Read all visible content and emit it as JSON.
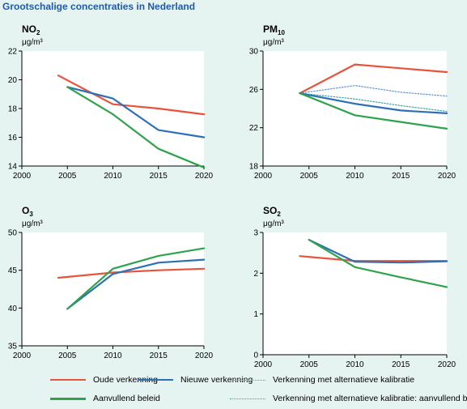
{
  "page": {
    "title": "Grootschalige concentraties in Nederland"
  },
  "colors": {
    "oude": "#e8533c",
    "nieuwe": "#2f6fb6",
    "alt": "#5b92d2",
    "aanvullend": "#2ea34b",
    "alt_aanvullend": "#30a7a0"
  },
  "chart_data": [
    {
      "id": "no2",
      "type": "line",
      "title_main": "NO",
      "title_sub": "2",
      "unit": "μg/m³",
      "xlim": [
        2000,
        2020
      ],
      "xticks": [
        "2000",
        "2005",
        "2010",
        "2015",
        "2020"
      ],
      "ylim": [
        14,
        22
      ],
      "yticks": [
        "14",
        "16",
        "18",
        "20",
        "22"
      ],
      "series": [
        {
          "name": "Oude verkenning",
          "color": "oude",
          "dash": "",
          "x": [
            2004,
            2010,
            2015,
            2020
          ],
          "y": [
            20.3,
            18.3,
            18.0,
            17.6
          ]
        },
        {
          "name": "Nieuwe verkenning",
          "color": "nieuwe",
          "dash": "",
          "x": [
            2005,
            2010,
            2015,
            2020
          ],
          "y": [
            19.5,
            18.7,
            16.5,
            16.0
          ]
        },
        {
          "name": "Aanvullend beleid",
          "color": "aanvullend",
          "dash": "",
          "x": [
            2005,
            2010,
            2015,
            2020
          ],
          "y": [
            19.5,
            17.6,
            15.2,
            13.9
          ]
        }
      ]
    },
    {
      "id": "pm10",
      "type": "line",
      "title_main": "PM",
      "title_sub": "10",
      "unit": "μg/m³",
      "xlim": [
        2000,
        2020
      ],
      "xticks": [
        "2000",
        "2005",
        "2010",
        "2015",
        "2020"
      ],
      "ylim": [
        18,
        30
      ],
      "yticks": [
        "18",
        "22",
        "26",
        "30"
      ],
      "series": [
        {
          "name": "Oude verkenning",
          "color": "oude",
          "dash": "",
          "x": [
            2004,
            2010,
            2015,
            2020
          ],
          "y": [
            25.6,
            28.6,
            28.2,
            27.8
          ]
        },
        {
          "name": "Verkenning met alternatieve kalibratie",
          "color": "alt",
          "dash": "1.5,2",
          "x": [
            2004,
            2010,
            2015,
            2020
          ],
          "y": [
            25.6,
            26.4,
            25.7,
            25.3
          ]
        },
        {
          "name": "Verkenning met alternatieve kalibratie: aanvullend beleid",
          "color": "alt_aanvullend",
          "dash": "1.5,2",
          "x": [
            2004,
            2010,
            2015,
            2020
          ],
          "y": [
            25.6,
            25.0,
            24.3,
            23.7
          ]
        },
        {
          "name": "Nieuwe verkenning",
          "color": "nieuwe",
          "dash": "",
          "x": [
            2004,
            2010,
            2015,
            2020
          ],
          "y": [
            25.6,
            24.5,
            23.8,
            23.5
          ]
        },
        {
          "name": "Aanvullend beleid",
          "color": "aanvullend",
          "dash": "",
          "x": [
            2004,
            2010,
            2015,
            2020
          ],
          "y": [
            25.6,
            23.3,
            22.6,
            21.9
          ]
        }
      ]
    },
    {
      "id": "o3",
      "type": "line",
      "title_main": "O",
      "title_sub": "3",
      "unit": "μg/m³",
      "xlim": [
        2000,
        2020
      ],
      "xticks": [
        "2000",
        "2005",
        "2010",
        "2015",
        "2020"
      ],
      "ylim": [
        35,
        50
      ],
      "yticks": [
        "35",
        "40",
        "45",
        "50"
      ],
      "series": [
        {
          "name": "Oude verkenning",
          "color": "oude",
          "dash": "",
          "x": [
            2004,
            2010,
            2015,
            2020
          ],
          "y": [
            44.0,
            44.7,
            45.0,
            45.2
          ]
        },
        {
          "name": "Nieuwe verkenning",
          "color": "nieuwe",
          "dash": "",
          "x": [
            2005,
            2010,
            2015,
            2020
          ],
          "y": [
            39.9,
            44.5,
            46.0,
            46.4
          ]
        },
        {
          "name": "Aanvullend beleid",
          "color": "aanvullend",
          "dash": "",
          "x": [
            2005,
            2010,
            2015,
            2020
          ],
          "y": [
            39.9,
            45.2,
            46.9,
            47.9
          ]
        }
      ]
    },
    {
      "id": "so2",
      "type": "line",
      "title_main": "SO",
      "title_sub": "2",
      "unit": "μg/m³",
      "xlim": [
        2000,
        2020
      ],
      "xticks": [
        "2000",
        "2005",
        "2010",
        "2015",
        "2020"
      ],
      "ylim": [
        0,
        3
      ],
      "yticks": [
        "0",
        "1",
        "2",
        "3"
      ],
      "series": [
        {
          "name": "Oude verkenning",
          "color": "oude",
          "dash": "",
          "x": [
            2004,
            2010,
            2015,
            2020
          ],
          "y": [
            2.42,
            2.3,
            2.3,
            2.3
          ]
        },
        {
          "name": "Nieuwe verkenning",
          "color": "nieuwe",
          "dash": "",
          "x": [
            2005,
            2010,
            2015,
            2020
          ],
          "y": [
            2.82,
            2.28,
            2.26,
            2.29
          ]
        },
        {
          "name": "Aanvullend beleid",
          "color": "aanvullend",
          "dash": "",
          "x": [
            2005,
            2010,
            2015,
            2020
          ],
          "y": [
            2.82,
            2.15,
            1.9,
            1.66
          ]
        }
      ]
    }
  ],
  "legend": {
    "oude": "Oude verkenning",
    "nieuwe": "Nieuwe verkenning",
    "alt": "Verkenning met alternatieve kalibratie",
    "aanvullend": "Aanvullend beleid",
    "alt_aanvullend": "Verkenning met alternatieve kalibratie: aanvullend beleid"
  }
}
